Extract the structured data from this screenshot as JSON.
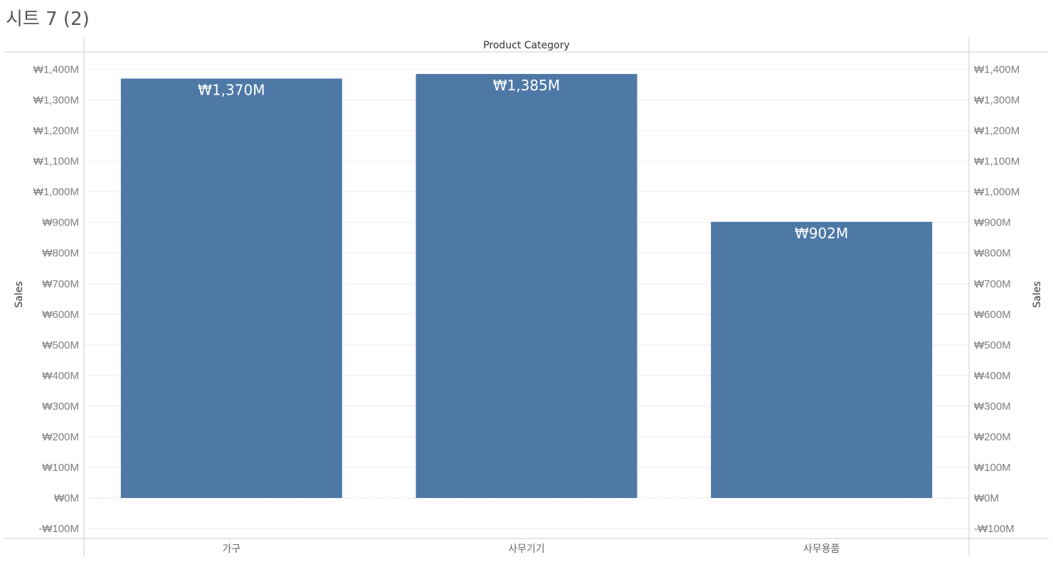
{
  "sheet": {
    "title": "시트 7 (2)"
  },
  "chart_data": {
    "type": "bar",
    "title": "시트 7 (2)",
    "column_header": "Product Category",
    "categories": [
      "가구",
      "사무기기",
      "사무용품"
    ],
    "values": [
      1370,
      1385,
      902
    ],
    "data_labels": [
      "₩1,370M",
      "₩1,385M",
      "₩902M"
    ],
    "ylabel_left": "Sales",
    "ylabel_right": "Sales",
    "ylim": [
      -100,
      1400
    ],
    "y_ticks": [
      -100,
      0,
      100,
      200,
      300,
      400,
      500,
      600,
      700,
      800,
      900,
      1000,
      1100,
      1200,
      1300,
      1400
    ],
    "y_tick_labels": [
      "-₩100M",
      "₩0M",
      "₩100M",
      "₩200M",
      "₩300M",
      "₩400M",
      "₩500M",
      "₩600M",
      "₩700M",
      "₩800M",
      "₩900M",
      "₩1,000M",
      "₩1,100M",
      "₩1,200M",
      "₩1,300M",
      "₩1,400M"
    ],
    "grid": true,
    "bar_color": "#4e79a7",
    "gridline_color": "#eeeeee",
    "border_color": "#cccccc"
  }
}
